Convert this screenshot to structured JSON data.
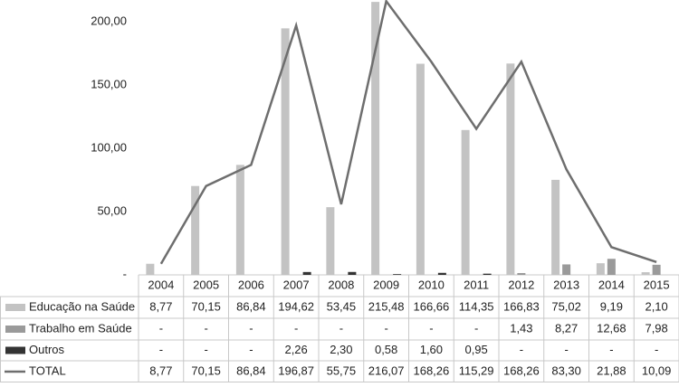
{
  "chart_data": {
    "type": "bar-line-table",
    "categories": [
      "2004",
      "2005",
      "2006",
      "2007",
      "2008",
      "2009",
      "2010",
      "2011",
      "2012",
      "2013",
      "2014",
      "2015"
    ],
    "series": [
      {
        "name": "Educação na Saúde",
        "color": "#c3c3c3",
        "type": "bar",
        "values": [
          8.77,
          70.15,
          86.84,
          194.62,
          53.45,
          215.48,
          166.66,
          114.35,
          166.83,
          75.02,
          9.19,
          2.1
        ],
        "value_labels": [
          "8,77",
          "70,15",
          "86,84",
          "194,62",
          "53,45",
          "215,48",
          "166,66",
          "114,35",
          "166,83",
          "75,02",
          "9,19",
          "2,10"
        ]
      },
      {
        "name": "Trabalho em Saúde",
        "color": "#9a9a9a",
        "type": "bar",
        "values": [
          null,
          null,
          null,
          null,
          null,
          null,
          null,
          null,
          1.43,
          8.27,
          12.68,
          7.98
        ],
        "value_labels": [
          "-",
          "-",
          "-",
          "-",
          "-",
          "-",
          "-",
          "-",
          "1,43",
          "8,27",
          "12,68",
          "7,98"
        ]
      },
      {
        "name": "Outros",
        "color": "#333333",
        "type": "bar",
        "values": [
          null,
          null,
          null,
          2.26,
          2.3,
          0.58,
          1.6,
          0.95,
          null,
          null,
          null,
          null
        ],
        "value_labels": [
          "-",
          "-",
          "-",
          "2,26",
          "2,30",
          "0,58",
          "1,60",
          "0,95",
          "-",
          "-",
          "-",
          "-"
        ]
      },
      {
        "name": "TOTAL",
        "color": "#6e6e6e",
        "type": "line",
        "values": [
          8.77,
          70.15,
          86.84,
          196.87,
          55.75,
          216.07,
          168.26,
          115.29,
          168.26,
          83.3,
          21.88,
          10.09
        ],
        "value_labels": [
          "8,77",
          "70,15",
          "86,84",
          "196,87",
          "55,75",
          "216,07",
          "168,26",
          "115,29",
          "168,26",
          "83,30",
          "21,88",
          "10,09"
        ]
      }
    ],
    "ylim": [
      0,
      217
    ],
    "yticks": [
      {
        "value": 0,
        "label": "-"
      },
      {
        "value": 50,
        "label": "50,00"
      },
      {
        "value": 100,
        "label": "100,00"
      },
      {
        "value": 150,
        "label": "150,00"
      },
      {
        "value": 200,
        "label": "200,00"
      }
    ],
    "grid": false
  }
}
